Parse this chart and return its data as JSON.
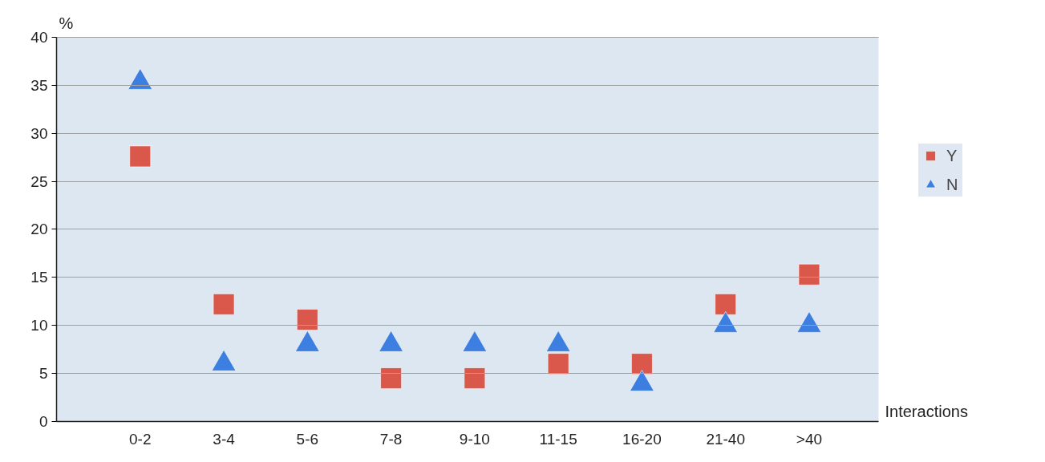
{
  "chart_data": {
    "type": "scatter",
    "xlabel": "Interactions",
    "ylabel": "%",
    "categories": [
      "0-2",
      "3-4",
      "5-6",
      "7-8",
      "9-10",
      "11-15",
      "16-20",
      "21-40",
      ">40"
    ],
    "series": [
      {
        "name": "Y",
        "color": "#d9574b",
        "marker": "square",
        "values": [
          27.6,
          12.2,
          10.6,
          4.5,
          4.5,
          6.0,
          6.0,
          12.2,
          15.3
        ]
      },
      {
        "name": "N",
        "color": "#3d7fe0",
        "marker": "triangle",
        "values": [
          35.3,
          6.0,
          8.0,
          8.0,
          8.0,
          8.0,
          3.9,
          10.0,
          10.0
        ]
      }
    ],
    "ylim": [
      0,
      40
    ],
    "yticks": [
      0,
      5,
      10,
      15,
      20,
      25,
      30,
      35,
      40
    ],
    "grid": "y",
    "legend": "right"
  }
}
